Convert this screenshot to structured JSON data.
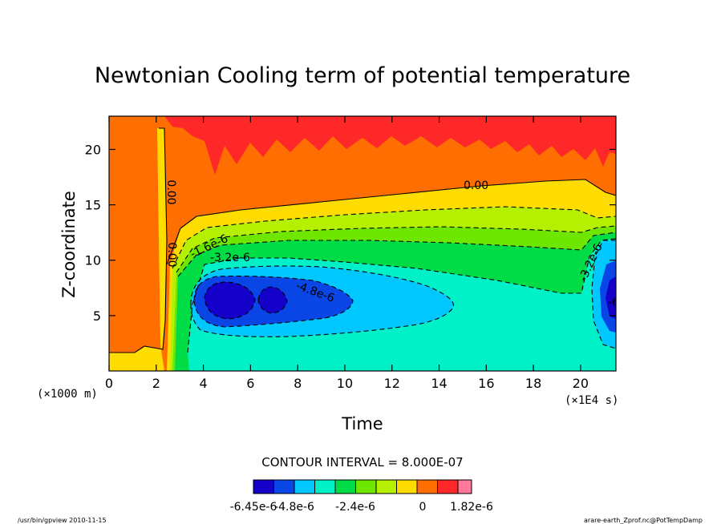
{
  "chart_data": {
    "type": "heatmap",
    "title": "Newtonian Cooling term of potential temperature",
    "xlabel": "Time",
    "ylabel": "Z-coordinate",
    "x_unit_note": "(×1E4 s)",
    "y_unit_note": "(×1000 m)",
    "xlim": [
      0,
      21.5
    ],
    "ylim": [
      0,
      23
    ],
    "x_ticks": [
      0,
      2,
      4,
      6,
      8,
      10,
      12,
      14,
      16,
      18,
      20
    ],
    "y_ticks": [
      5,
      10,
      15,
      20
    ],
    "contour_interval_text": "CONTOUR INTERVAL = 8.000E-07",
    "contour_labels": [
      "0.00",
      "0.00",
      "0.00",
      "-1.6e-6",
      "-3.2e-6",
      "-4.8e-6",
      "-3.2e-6",
      "-6"
    ],
    "colorbar": {
      "levels": [
        -6.45e-06,
        -5.6e-06,
        -4.8e-06,
        -4e-06,
        -3.2e-06,
        -2.4e-06,
        -1.6e-06,
        -8e-07,
        0,
        8e-07,
        1.6e-06,
        1.82e-06
      ],
      "colors": [
        "#1400c8",
        "#0a46e6",
        "#00c8ff",
        "#00f0c8",
        "#00dc46",
        "#6ee600",
        "#b4f000",
        "#ffdc00",
        "#ff6e00",
        "#ff2828",
        "#ff7a9a"
      ],
      "tick_labels": [
        "-6.45e-6",
        "-4.8e-6",
        "-2.4e-6",
        "0",
        "1.82e-6"
      ]
    }
  },
  "footer": {
    "left": "/usr/bin/gpview  2010-11-15",
    "right": "arare-earth_Zprof.nc@PotTempDamp"
  }
}
